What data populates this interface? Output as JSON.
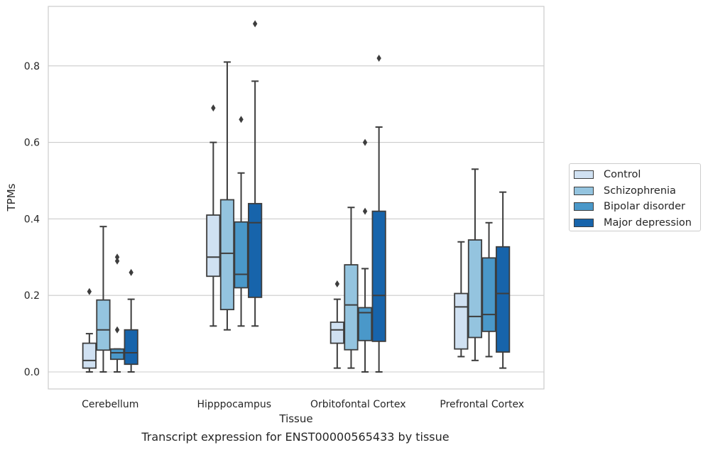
{
  "chart_data": {
    "type": "box",
    "xlabel": "Tissue",
    "ylabel": "TPMs",
    "caption": "Transcript expression for ENST00000565433 by tissue",
    "ylim": [
      -0.045,
      0.96
    ],
    "yticks": [
      "0.0",
      "0.2",
      "0.4",
      "0.6",
      "0.8"
    ],
    "grid": "horizontal",
    "legend_position": "right-center",
    "categories": [
      "Cerebellum",
      "Hipppocampus",
      "Orbitofontal Cortex",
      "Prefrontal Cortex"
    ],
    "series": [
      {
        "name": "Control",
        "color": "#d0e1f2",
        "boxes": [
          {
            "whislo": 0.0,
            "q1": 0.01,
            "med": 0.03,
            "q3": 0.075,
            "whishi": 0.1,
            "fliers": [
              0.21
            ]
          },
          {
            "whislo": 0.12,
            "q1": 0.25,
            "med": 0.3,
            "q3": 0.41,
            "whishi": 0.6,
            "fliers": [
              0.69
            ]
          },
          {
            "whislo": 0.01,
            "q1": 0.075,
            "med": 0.11,
            "q3": 0.13,
            "whishi": 0.19,
            "fliers": [
              0.23
            ]
          },
          {
            "whislo": 0.04,
            "q1": 0.06,
            "med": 0.17,
            "q3": 0.205,
            "whishi": 0.34,
            "fliers": []
          }
        ]
      },
      {
        "name": "Schizophrenia",
        "color": "#94c4df",
        "boxes": [
          {
            "whislo": 0.0,
            "q1": 0.057,
            "med": 0.11,
            "q3": 0.188,
            "whishi": 0.38,
            "fliers": []
          },
          {
            "whislo": 0.11,
            "q1": 0.163,
            "med": 0.31,
            "q3": 0.45,
            "whishi": 0.81,
            "fliers": []
          },
          {
            "whislo": 0.01,
            "q1": 0.058,
            "med": 0.175,
            "q3": 0.28,
            "whishi": 0.43,
            "fliers": []
          },
          {
            "whislo": 0.03,
            "q1": 0.09,
            "med": 0.145,
            "q3": 0.345,
            "whishi": 0.53,
            "fliers": []
          }
        ]
      },
      {
        "name": "Bipolar disorder",
        "color": "#4a98c9",
        "boxes": [
          {
            "whislo": 0.0,
            "q1": 0.033,
            "med": 0.05,
            "q3": 0.06,
            "whishi": 0.06,
            "fliers": [
              0.11,
              0.29,
              0.3
            ]
          },
          {
            "whislo": 0.12,
            "q1": 0.22,
            "med": 0.255,
            "q3": 0.392,
            "whishi": 0.52,
            "fliers": [
              0.66
            ]
          },
          {
            "whislo": 0.0,
            "q1": 0.082,
            "med": 0.155,
            "q3": 0.168,
            "whishi": 0.27,
            "fliers": [
              0.42,
              0.6
            ]
          },
          {
            "whislo": 0.04,
            "q1": 0.106,
            "med": 0.15,
            "q3": 0.298,
            "whishi": 0.39,
            "fliers": []
          }
        ]
      },
      {
        "name": "Major depression",
        "color": "#1764ab",
        "boxes": [
          {
            "whislo": 0.0,
            "q1": 0.02,
            "med": 0.05,
            "q3": 0.11,
            "whishi": 0.19,
            "fliers": [
              0.26
            ]
          },
          {
            "whislo": 0.12,
            "q1": 0.195,
            "med": 0.39,
            "q3": 0.44,
            "whishi": 0.76,
            "fliers": [
              0.91
            ]
          },
          {
            "whislo": 0.0,
            "q1": 0.08,
            "med": 0.2,
            "q3": 0.42,
            "whishi": 0.64,
            "fliers": [
              0.82
            ]
          },
          {
            "whislo": 0.01,
            "q1": 0.052,
            "med": 0.205,
            "q3": 0.327,
            "whishi": 0.47,
            "fliers": []
          }
        ]
      }
    ]
  }
}
